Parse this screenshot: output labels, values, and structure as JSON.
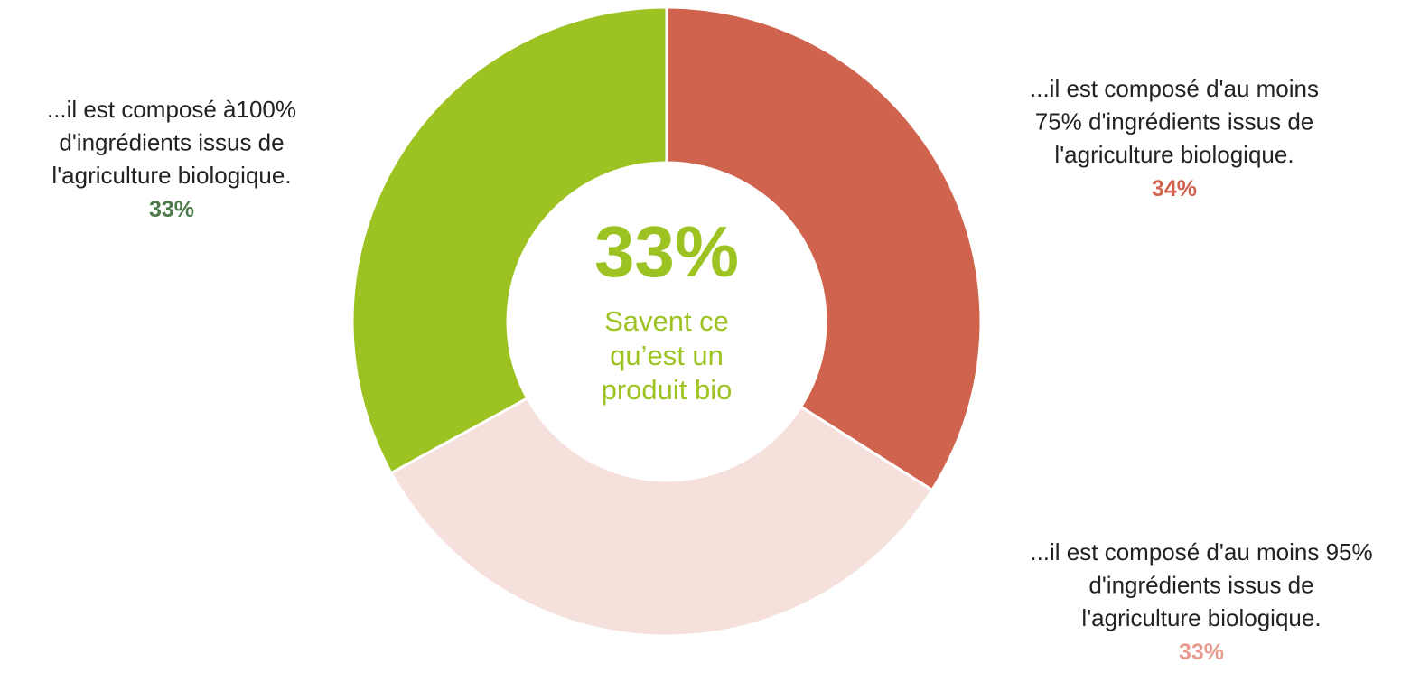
{
  "chart_data": {
    "type": "donut",
    "categories": [
      "...il est composé d'au moins\n75% d'ingrédients issus de\nl'agriculture biologique.",
      "...il est composé d'au moins 95%\nd'ingrédients issus de\nl'agriculture biologique.",
      "...il est composé à100%\nd'ingrédients issus de\nl'agriculture biologique."
    ],
    "values": [
      34,
      33,
      33
    ],
    "value_labels": [
      "34%",
      "33%",
      "33%"
    ],
    "colors": [
      "#d0634d",
      "#f5e0dc",
      "#9cc321"
    ],
    "label_colors": [
      "#d0634d",
      "#e89c8f",
      "#4e7a4c"
    ],
    "center_value": "33%",
    "center_text": "Savent ce\nqu’est un\nproduit bio",
    "center_color": "#9cc321"
  }
}
